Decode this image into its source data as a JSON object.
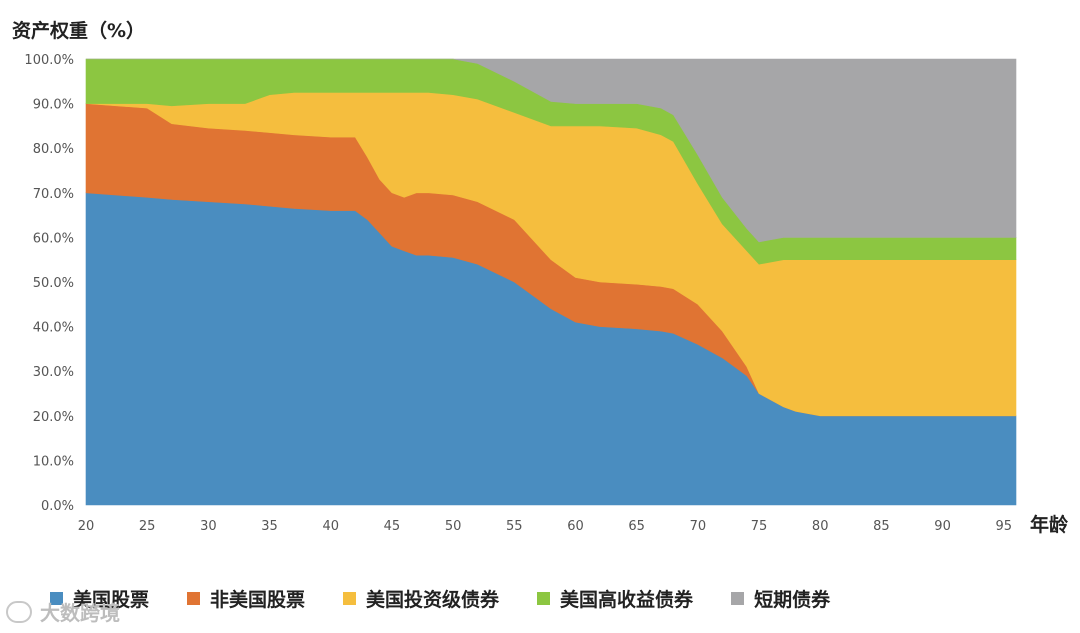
{
  "chart_data": {
    "type": "area",
    "stacked": true,
    "ylabel": "资产权重（%）",
    "xlabel": "年龄",
    "xlim": [
      20,
      96
    ],
    "ylim": [
      0,
      100
    ],
    "x_ticks": [
      "20",
      "25",
      "30",
      "35",
      "40",
      "45",
      "50",
      "55",
      "60",
      "65",
      "70",
      "75",
      "80",
      "85",
      "90",
      "95"
    ],
    "y_ticks": [
      "0.0%",
      "10.0%",
      "20.0%",
      "30.0%",
      "40.0%",
      "50.0%",
      "60.0%",
      "70.0%",
      "80.0%",
      "90.0%",
      "100.0%"
    ],
    "grid": false,
    "legend_position": "bottom",
    "x": [
      20,
      25,
      27,
      30,
      33,
      35,
      37,
      40,
      42,
      43,
      44,
      45,
      46,
      47,
      48,
      50,
      52,
      55,
      58,
      60,
      62,
      65,
      67,
      68,
      70,
      72,
      74,
      75,
      77,
      78,
      80,
      85,
      90,
      96
    ],
    "series": [
      {
        "name": "美国股票",
        "color": "#4a8dc0",
        "values": [
          70,
          69,
          68.5,
          68,
          67.5,
          67,
          66.5,
          66,
          66,
          64,
          61,
          58,
          57,
          56,
          56,
          55.5,
          54,
          50,
          44,
          41,
          40,
          39.5,
          39,
          38.5,
          36,
          33,
          29,
          25,
          22,
          21,
          20,
          20,
          20,
          20
        ]
      },
      {
        "name": "非美国股票",
        "color": "#e07433",
        "values": [
          20,
          20,
          17,
          16.5,
          16.5,
          16.5,
          16.5,
          16.5,
          16.5,
          14,
          12,
          12,
          12,
          14,
          14,
          14,
          14,
          14,
          11,
          10,
          10,
          10,
          10,
          10,
          9,
          6,
          2,
          0,
          0,
          0,
          0,
          0,
          0,
          0
        ]
      },
      {
        "name": "美国投资级债券",
        "color": "#f5be3e",
        "values": [
          0,
          1,
          4,
          5.5,
          6,
          8.5,
          9.5,
          10,
          10,
          14.5,
          19.5,
          22.5,
          23.5,
          22.5,
          22.5,
          22.5,
          23,
          24,
          30,
          34,
          35,
          35,
          34,
          33,
          27,
          24,
          26,
          29,
          33,
          34,
          35,
          35,
          35,
          35
        ]
      },
      {
        "name": "美国高收益债券",
        "color": "#8cc641",
        "values": [
          10,
          10,
          10.5,
          10,
          10,
          8,
          7.5,
          7.5,
          7.5,
          7.5,
          7.5,
          7.5,
          7.5,
          7.5,
          7.5,
          8,
          8,
          7,
          5.5,
          5,
          5,
          5.5,
          6,
          6,
          6.5,
          6,
          5,
          5,
          5,
          5,
          5,
          5,
          5,
          5
        ]
      },
      {
        "name": "短期债券",
        "color": "#a6a6a8",
        "values": [
          0,
          0,
          0,
          0,
          0,
          0,
          0,
          0,
          0,
          0,
          0,
          0,
          0,
          0,
          0,
          0,
          1,
          5,
          9.5,
          10,
          10,
          10,
          11,
          12.5,
          21.5,
          31,
          38,
          41,
          40,
          40,
          40,
          40,
          40,
          40
        ]
      }
    ]
  },
  "watermark": {
    "text": "大数跨境"
  }
}
